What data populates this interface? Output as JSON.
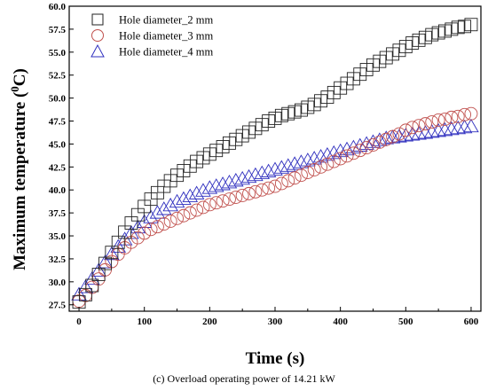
{
  "chart_data": {
    "type": "scatter",
    "xlabel": "Time (s)",
    "ylabel_main": "Maximum temperature (",
    "ylabel_sup": "0",
    "ylabel_end": "C)",
    "xlim": [
      -15,
      615
    ],
    "ylim": [
      26.8,
      60.0
    ],
    "x_ticks": [
      0,
      100,
      200,
      300,
      400,
      500,
      600
    ],
    "x_tick_labels": [
      "0",
      "100",
      "200",
      "300",
      "400",
      "500",
      "600"
    ],
    "y_ticks": [
      27.5,
      30.0,
      32.5,
      35.0,
      37.5,
      40.0,
      42.5,
      45.0,
      47.5,
      50.0,
      52.5,
      55.0,
      57.5,
      60.0
    ],
    "y_tick_labels": [
      "27.5",
      "30.0",
      "32.5",
      "35.0",
      "37.5",
      "40.0",
      "42.5",
      "45.0",
      "47.5",
      "50.0",
      "52.5",
      "55.0",
      "57.5",
      "60.0"
    ],
    "grid": false,
    "legend_position": "top-left",
    "series": [
      {
        "name": "Hole diameter_2 mm",
        "marker": "square",
        "color": "#222222",
        "points": [
          [
            0,
            27.8
          ],
          [
            10,
            28.6
          ],
          [
            20,
            29.6
          ],
          [
            30,
            30.8
          ],
          [
            40,
            32.0
          ],
          [
            50,
            33.2
          ],
          [
            60,
            34.3
          ],
          [
            70,
            35.4
          ],
          [
            80,
            36.4
          ],
          [
            90,
            37.3
          ],
          [
            100,
            38.2
          ],
          [
            110,
            39.0
          ],
          [
            120,
            39.7
          ],
          [
            130,
            40.4
          ],
          [
            140,
            41.0
          ],
          [
            150,
            41.6
          ],
          [
            160,
            42.1
          ],
          [
            170,
            42.6
          ],
          [
            180,
            43.1
          ],
          [
            190,
            43.5
          ],
          [
            200,
            43.9
          ],
          [
            210,
            44.3
          ],
          [
            220,
            44.7
          ],
          [
            230,
            45.1
          ],
          [
            240,
            45.5
          ],
          [
            250,
            45.9
          ],
          [
            260,
            46.3
          ],
          [
            270,
            46.7
          ],
          [
            280,
            47.1
          ],
          [
            290,
            47.5
          ],
          [
            300,
            47.8
          ],
          [
            310,
            48.1
          ],
          [
            320,
            48.3
          ],
          [
            330,
            48.5
          ],
          [
            340,
            48.7
          ],
          [
            350,
            49.0
          ],
          [
            360,
            49.3
          ],
          [
            370,
            49.7
          ],
          [
            380,
            50.1
          ],
          [
            390,
            50.6
          ],
          [
            400,
            51.1
          ],
          [
            410,
            51.6
          ],
          [
            420,
            52.1
          ],
          [
            430,
            52.6
          ],
          [
            440,
            53.1
          ],
          [
            450,
            53.6
          ],
          [
            460,
            54.0
          ],
          [
            470,
            54.4
          ],
          [
            480,
            54.8
          ],
          [
            490,
            55.2
          ],
          [
            500,
            55.6
          ],
          [
            510,
            56.0
          ],
          [
            520,
            56.3
          ],
          [
            530,
            56.6
          ],
          [
            540,
            56.9
          ],
          [
            550,
            57.1
          ],
          [
            560,
            57.3
          ],
          [
            570,
            57.5
          ],
          [
            580,
            57.7
          ],
          [
            590,
            57.8
          ],
          [
            600,
            58.0
          ]
        ]
      },
      {
        "name": "Hole diameter_3 mm",
        "marker": "circle",
        "color": "#c0504d",
        "points": [
          [
            0,
            27.9
          ],
          [
            10,
            28.5
          ],
          [
            20,
            29.4
          ],
          [
            30,
            30.3
          ],
          [
            40,
            31.3
          ],
          [
            50,
            32.2
          ],
          [
            60,
            33.0
          ],
          [
            70,
            33.7
          ],
          [
            80,
            34.3
          ],
          [
            90,
            34.8
          ],
          [
            100,
            35.3
          ],
          [
            110,
            35.7
          ],
          [
            120,
            36.0
          ],
          [
            130,
            36.3
          ],
          [
            140,
            36.6
          ],
          [
            150,
            36.9
          ],
          [
            160,
            37.2
          ],
          [
            170,
            37.5
          ],
          [
            180,
            37.8
          ],
          [
            190,
            38.1
          ],
          [
            200,
            38.4
          ],
          [
            210,
            38.6
          ],
          [
            220,
            38.8
          ],
          [
            230,
            39.0
          ],
          [
            240,
            39.2
          ],
          [
            250,
            39.4
          ],
          [
            260,
            39.6
          ],
          [
            270,
            39.8
          ],
          [
            280,
            40.0
          ],
          [
            290,
            40.2
          ],
          [
            300,
            40.4
          ],
          [
            310,
            40.7
          ],
          [
            320,
            41.0
          ],
          [
            330,
            41.3
          ],
          [
            340,
            41.6
          ],
          [
            350,
            41.9
          ],
          [
            360,
            42.2
          ],
          [
            370,
            42.5
          ],
          [
            380,
            42.8
          ],
          [
            390,
            43.1
          ],
          [
            400,
            43.4
          ],
          [
            410,
            43.7
          ],
          [
            420,
            44.0
          ],
          [
            430,
            44.3
          ],
          [
            440,
            44.6
          ],
          [
            450,
            44.9
          ],
          [
            460,
            45.2
          ],
          [
            470,
            45.5
          ],
          [
            480,
            45.8
          ],
          [
            490,
            46.1
          ],
          [
            500,
            46.5
          ],
          [
            510,
            46.8
          ],
          [
            520,
            47.0
          ],
          [
            530,
            47.2
          ],
          [
            540,
            47.4
          ],
          [
            550,
            47.6
          ],
          [
            560,
            47.7
          ],
          [
            570,
            47.9
          ],
          [
            580,
            48.0
          ],
          [
            590,
            48.2
          ],
          [
            600,
            48.3
          ]
        ]
      },
      {
        "name": "Hole diameter_4 mm",
        "marker": "triangle",
        "color": "#2f2fbf",
        "points": [
          [
            0,
            28.6
          ],
          [
            10,
            29.4
          ],
          [
            20,
            30.3
          ],
          [
            30,
            31.2
          ],
          [
            40,
            32.1
          ],
          [
            50,
            33.0
          ],
          [
            60,
            33.8
          ],
          [
            70,
            34.6
          ],
          [
            80,
            35.3
          ],
          [
            90,
            35.9
          ],
          [
            100,
            36.5
          ],
          [
            110,
            37.0
          ],
          [
            120,
            37.5
          ],
          [
            130,
            37.9
          ],
          [
            140,
            38.3
          ],
          [
            150,
            38.7
          ],
          [
            160,
            39.0
          ],
          [
            170,
            39.3
          ],
          [
            180,
            39.6
          ],
          [
            190,
            39.9
          ],
          [
            200,
            40.2
          ],
          [
            210,
            40.4
          ],
          [
            220,
            40.6
          ],
          [
            230,
            40.8
          ],
          [
            240,
            41.0
          ],
          [
            250,
            41.2
          ],
          [
            260,
            41.4
          ],
          [
            270,
            41.6
          ],
          [
            280,
            41.8
          ],
          [
            290,
            42.0
          ],
          [
            300,
            42.2
          ],
          [
            310,
            42.4
          ],
          [
            320,
            42.6
          ],
          [
            330,
            42.8
          ],
          [
            340,
            43.0
          ],
          [
            350,
            43.2
          ],
          [
            360,
            43.4
          ],
          [
            370,
            43.6
          ],
          [
            380,
            43.8
          ],
          [
            390,
            44.0
          ],
          [
            400,
            44.2
          ],
          [
            410,
            44.4
          ],
          [
            420,
            44.6
          ],
          [
            430,
            44.8
          ],
          [
            440,
            45.0
          ],
          [
            450,
            45.2
          ],
          [
            460,
            45.4
          ],
          [
            470,
            45.6
          ],
          [
            480,
            45.7
          ],
          [
            490,
            45.8
          ],
          [
            500,
            45.9
          ],
          [
            510,
            46.0
          ],
          [
            520,
            46.1
          ],
          [
            530,
            46.2
          ],
          [
            540,
            46.3
          ],
          [
            550,
            46.4
          ],
          [
            560,
            46.5
          ],
          [
            570,
            46.6
          ],
          [
            580,
            46.7
          ],
          [
            590,
            46.8
          ],
          [
            600,
            46.9
          ]
        ]
      }
    ]
  },
  "caption": {
    "label": "(c)",
    "text": "Overload operating power of 14.21 kW"
  }
}
